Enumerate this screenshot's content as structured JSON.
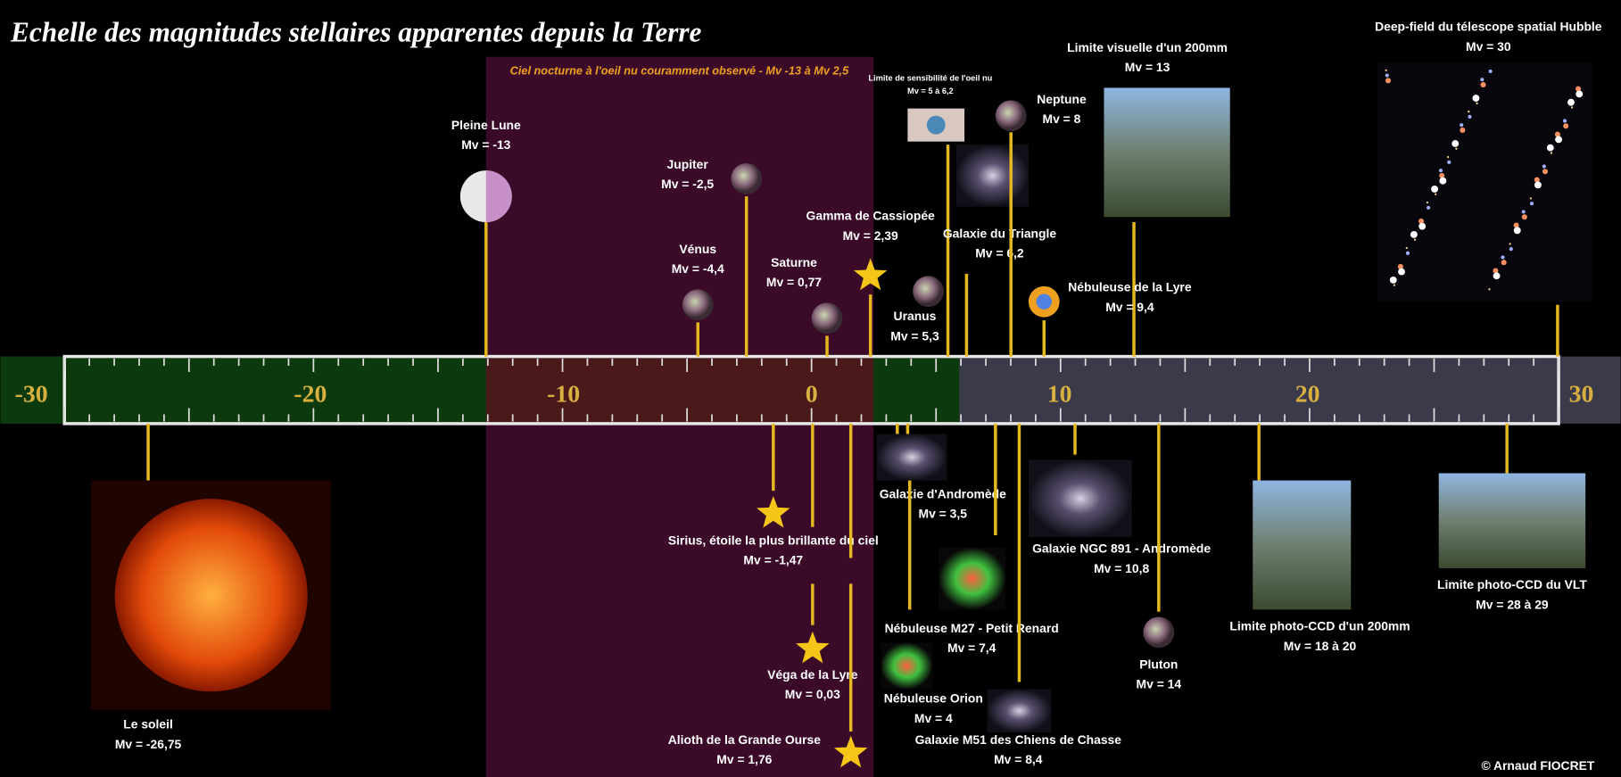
{
  "title": "Echelle des magnitudes stellaires apparentes depuis la Terre",
  "band_label": "Ciel nocturne à l'oeil nu couramment observé - Mv -13 à Mv 2,5",
  "scale": {
    "labels": [
      "-30",
      "-20",
      "-10",
      "0",
      "10",
      "20",
      "30"
    ]
  },
  "objects": [
    {
      "name": "Pleine Lune",
      "mv": "Mv = -13"
    },
    {
      "name": "Jupiter",
      "mv": "Mv = -2,5"
    },
    {
      "name": "Vénus",
      "mv": "Mv = -4,4"
    },
    {
      "name": "Saturne",
      "mv": "Mv = 0,77"
    },
    {
      "name": "Gamma de Cassiopée",
      "mv": "Mv = 2,39"
    },
    {
      "name": "Uranus",
      "mv": "Mv = 5,3"
    },
    {
      "name": "Limite de sensibilité de l'oeil nu",
      "mv": "Mv = 5 à 6,2"
    },
    {
      "name": "Galaxie du Triangle",
      "mv": "Mv = 6,2"
    },
    {
      "name": "Neptune",
      "mv": "Mv = 8"
    },
    {
      "name": "Limite visuelle d'un 200mm",
      "mv": "Mv = 13"
    },
    {
      "name": "Nébuleuse de la Lyre",
      "mv": "Mv = 9,4"
    },
    {
      "name": "Deep-field du télescope spatial Hubble",
      "mv": "Mv = 30"
    },
    {
      "name": "Le soleil",
      "mv": "Mv = -26,75"
    },
    {
      "name": "Sirius, étoile la plus brillante du ciel",
      "mv": "Mv = -1,47"
    },
    {
      "name": "Véga de la Lyre",
      "mv": "Mv = 0,03"
    },
    {
      "name": "Alioth de la Grande Ourse",
      "mv": "Mv = 1,76"
    },
    {
      "name": "Galaxie d'Andromède",
      "mv": "Mv = 3,5"
    },
    {
      "name": "Nébuleuse Orion",
      "mv": "Mv = 4"
    },
    {
      "name": "Nébuleuse M27 - Petit Renard",
      "mv": "Mv = 7,4"
    },
    {
      "name": "Galaxie M51 des Chiens de Chasse",
      "mv": "Mv = 8,4"
    },
    {
      "name": "Galaxie NGC 891 - Andromède",
      "mv": "Mv = 10,8"
    },
    {
      "name": "Pluton",
      "mv": "Mv = 14"
    },
    {
      "name": "Limite photo-CCD d'un 200mm",
      "mv": "Mv = 18 à 20"
    },
    {
      "name": "Limite photo-CCD du VLT",
      "mv": "Mv = 28 à 29"
    }
  ],
  "credit": "© Arnaud FIOCRET"
}
